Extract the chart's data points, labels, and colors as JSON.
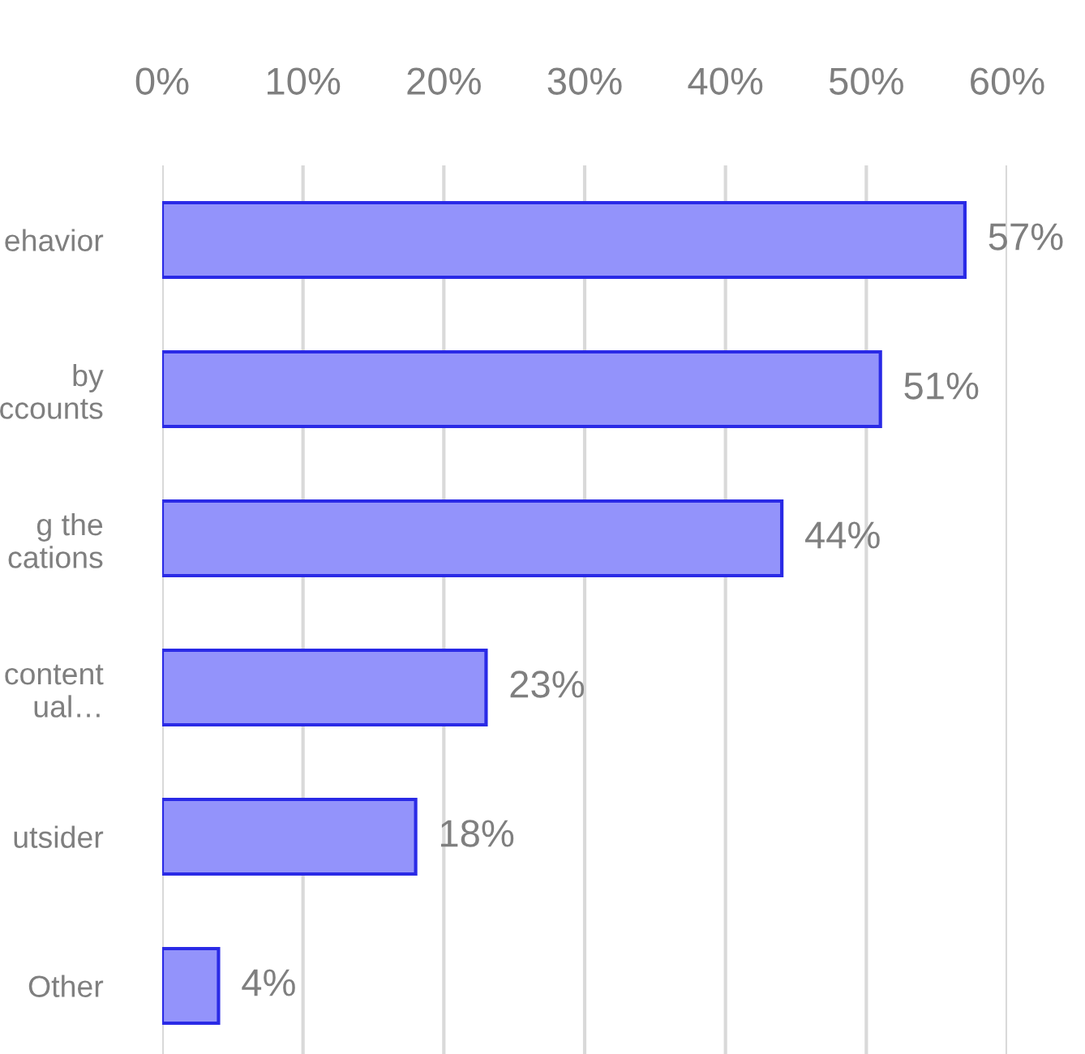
{
  "chart_data": {
    "type": "bar",
    "orientation": "horizontal",
    "categories": [
      "ehavior",
      "by\nccounts",
      "g the\ncations",
      "content\nual…",
      "utsider",
      "Other"
    ],
    "values": [
      57,
      51,
      44,
      23,
      18,
      4
    ],
    "value_labels": [
      "57%",
      "51%",
      "44%",
      "23%",
      "18%",
      "4%"
    ],
    "color": "#9393fb",
    "xlim": [
      0,
      60
    ],
    "xticks": [
      {
        "value": 0,
        "label": "0%"
      },
      {
        "value": 10,
        "label": "10%"
      },
      {
        "value": 20,
        "label": "20%"
      },
      {
        "value": 30,
        "label": "30%"
      },
      {
        "value": 40,
        "label": "40%"
      },
      {
        "value": 50,
        "label": "50%"
      },
      {
        "value": 60,
        "label": "60%"
      }
    ],
    "grid": "x",
    "legend": false
  }
}
